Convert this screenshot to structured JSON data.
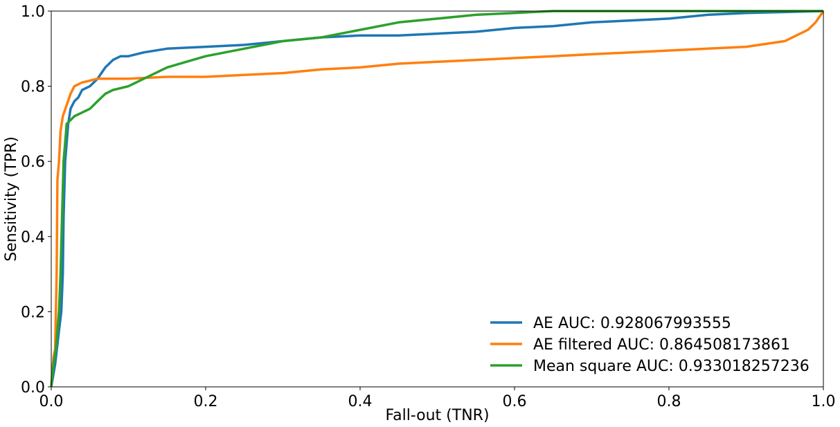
{
  "chart_data": {
    "type": "line",
    "title": "",
    "xlabel": "Fall-out (TNR)",
    "ylabel": "Sensitivity (TPR)",
    "xlim": [
      0.0,
      1.0
    ],
    "ylim": [
      0.0,
      1.0
    ],
    "xticks": [
      "0.0",
      "0.2",
      "0.4",
      "0.6",
      "0.8",
      "1.0"
    ],
    "yticks": [
      "0.0",
      "0.2",
      "0.4",
      "0.6",
      "0.8",
      "1.0"
    ],
    "grid": false,
    "legend_position": "lower right",
    "series": [
      {
        "name": "AE AUC: 0.928067993555",
        "color": "#1f77b4",
        "x": [
          0.0,
          0.005,
          0.01,
          0.013,
          0.015,
          0.016,
          0.018,
          0.02,
          0.022,
          0.025,
          0.03,
          0.035,
          0.04,
          0.05,
          0.06,
          0.07,
          0.08,
          0.09,
          0.1,
          0.12,
          0.15,
          0.2,
          0.25,
          0.3,
          0.35,
          0.4,
          0.45,
          0.5,
          0.55,
          0.6,
          0.65,
          0.7,
          0.75,
          0.8,
          0.85,
          0.9,
          1.0
        ],
        "y": [
          0.0,
          0.06,
          0.15,
          0.2,
          0.3,
          0.45,
          0.6,
          0.65,
          0.7,
          0.74,
          0.76,
          0.77,
          0.79,
          0.8,
          0.82,
          0.85,
          0.87,
          0.88,
          0.88,
          0.89,
          0.9,
          0.905,
          0.91,
          0.92,
          0.93,
          0.935,
          0.935,
          0.94,
          0.945,
          0.955,
          0.96,
          0.97,
          0.975,
          0.98,
          0.99,
          0.995,
          1.0
        ]
      },
      {
        "name": "AE filtered AUC: 0.864508173861",
        "color": "#ff7f0e",
        "x": [
          0.0,
          0.003,
          0.005,
          0.007,
          0.008,
          0.01,
          0.012,
          0.015,
          0.02,
          0.025,
          0.03,
          0.04,
          0.05,
          0.06,
          0.08,
          0.1,
          0.15,
          0.2,
          0.25,
          0.3,
          0.35,
          0.4,
          0.45,
          0.5,
          0.55,
          0.6,
          0.65,
          0.7,
          0.75,
          0.8,
          0.85,
          0.9,
          0.95,
          0.98,
          0.99,
          1.0
        ],
        "y": [
          0.0,
          0.08,
          0.1,
          0.3,
          0.55,
          0.6,
          0.68,
          0.72,
          0.75,
          0.78,
          0.8,
          0.81,
          0.815,
          0.82,
          0.82,
          0.82,
          0.825,
          0.825,
          0.83,
          0.835,
          0.845,
          0.85,
          0.86,
          0.865,
          0.87,
          0.875,
          0.88,
          0.885,
          0.89,
          0.895,
          0.9,
          0.905,
          0.92,
          0.95,
          0.97,
          1.0
        ]
      },
      {
        "name": "Mean square AUC: 0.933018257236",
        "color": "#2ca02c",
        "x": [
          0.0,
          0.003,
          0.006,
          0.01,
          0.012,
          0.014,
          0.016,
          0.018,
          0.02,
          0.025,
          0.03,
          0.04,
          0.05,
          0.06,
          0.07,
          0.08,
          0.1,
          0.12,
          0.15,
          0.2,
          0.25,
          0.3,
          0.35,
          0.4,
          0.45,
          0.5,
          0.55,
          0.6,
          0.65,
          0.7,
          0.8,
          0.9,
          1.0
        ],
        "y": [
          0.0,
          0.06,
          0.1,
          0.2,
          0.3,
          0.45,
          0.6,
          0.65,
          0.7,
          0.71,
          0.72,
          0.73,
          0.74,
          0.76,
          0.78,
          0.79,
          0.8,
          0.82,
          0.85,
          0.88,
          0.9,
          0.92,
          0.93,
          0.95,
          0.97,
          0.98,
          0.99,
          0.995,
          1.0,
          1.0,
          1.0,
          1.0,
          1.0
        ]
      }
    ]
  }
}
